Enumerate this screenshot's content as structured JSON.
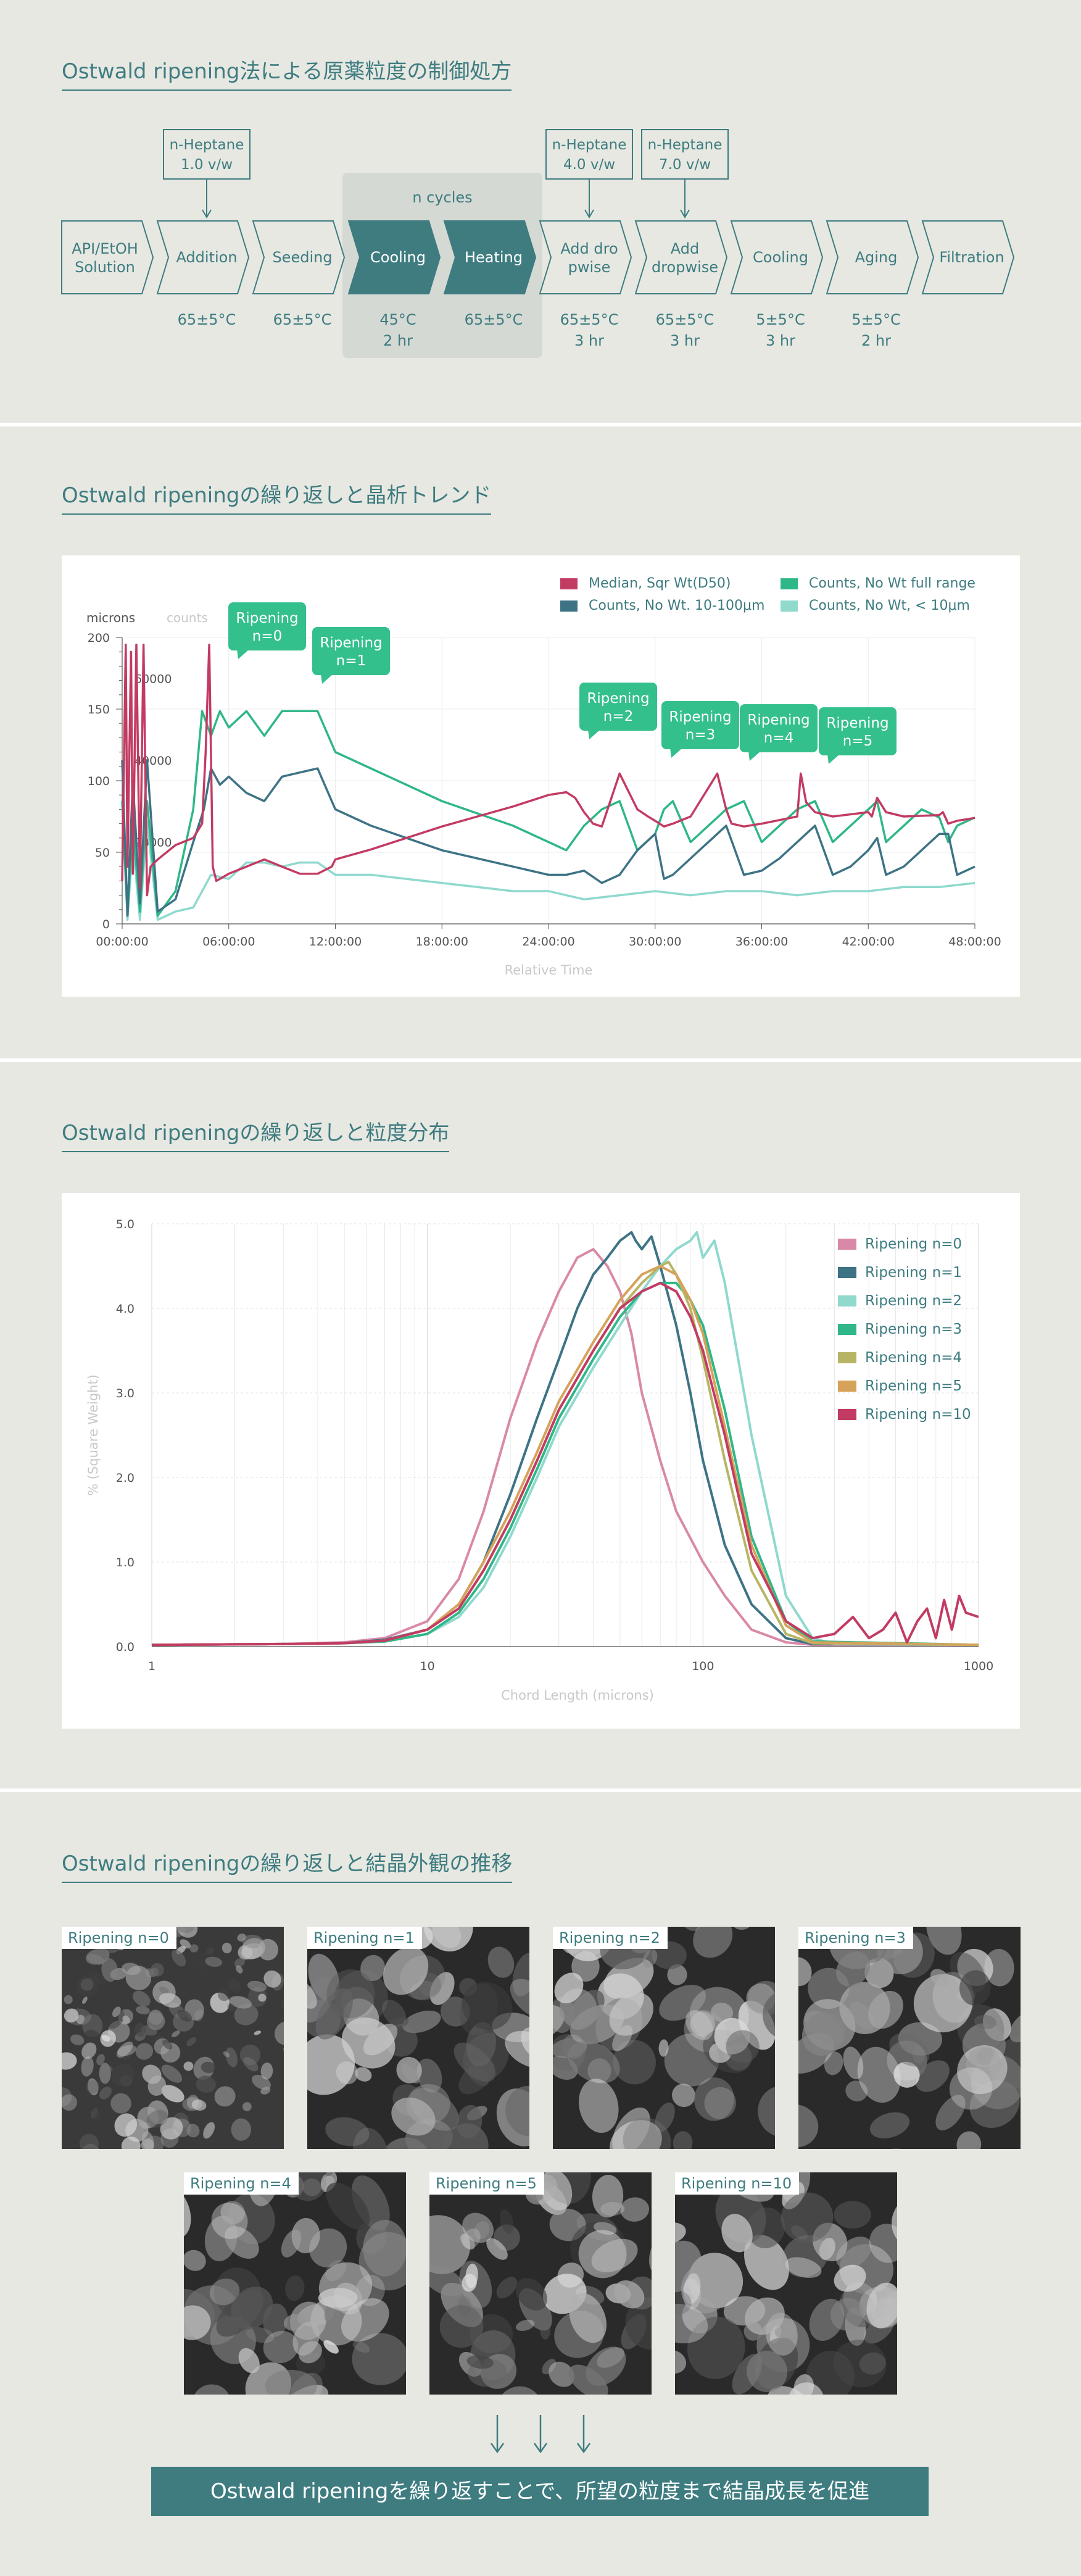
{
  "sections": {
    "process": {
      "title": "Ostwald ripening法による原薬粒度の制御処方"
    },
    "trend": {
      "title": "Ostwald ripeningの繰り返しと晶析トレンド"
    },
    "psd": {
      "title": "Ostwald ripeningの繰り返しと粒度分布"
    },
    "photos": {
      "title": "Ostwald ripeningの繰り返しと結晶外観の推移"
    }
  },
  "process": {
    "cycle_label": "n cycles",
    "steps": [
      {
        "label": "API/EtOH\nSolution",
        "cond": "",
        "style": "outline"
      },
      {
        "label": "Addition",
        "cond": "65±5°C",
        "style": "outline"
      },
      {
        "label": "Seeding",
        "cond": "65±5°C",
        "style": "outline"
      },
      {
        "label": "Cooling",
        "cond": "45°C\n2 hr",
        "style": "filled"
      },
      {
        "label": "Heating",
        "cond": "65±5°C",
        "style": "filled"
      },
      {
        "label": "Add dro\npwise",
        "cond": "65±5°C\n3 hr",
        "style": "outline"
      },
      {
        "label": "Add\ndropwise",
        "cond": "65±5°C\n3 hr",
        "style": "outline"
      },
      {
        "label": "Cooling",
        "cond": "5±5°C\n3 hr",
        "style": "outline"
      },
      {
        "label": "Aging",
        "cond": "5±5°C\n2 hr",
        "style": "outline"
      },
      {
        "label": "Filtration",
        "cond": "",
        "style": "outline"
      }
    ],
    "additions": [
      {
        "step": 1,
        "label": "n-Heptane\n1.0 v/w"
      },
      {
        "step": 5,
        "label": "n-Heptane\n4.0 v/w"
      },
      {
        "step": 6,
        "label": "n-Heptane\n7.0 v/w"
      }
    ],
    "colors": {
      "accent": "#3e7c80",
      "cycle_bg": "#d5d9d4"
    }
  },
  "chart_data": [
    {
      "type": "line",
      "title": "",
      "xlabel": "Relative Time",
      "ylabel_left": "microns",
      "ylabel_right": "counts",
      "x_ticks": [
        "00:00:00",
        "06:00:00",
        "12:00:00",
        "18:00:00",
        "24:00:00",
        "30:00:00",
        "36:00:00",
        "42:00:00",
        "48:00:00"
      ],
      "xlim": [
        0,
        48
      ],
      "ylim_left": [
        0,
        200
      ],
      "y_ticks_left": [
        "0",
        "50",
        "100",
        "150",
        "200"
      ],
      "ylim_right": [
        0,
        70000
      ],
      "y_ticks_right": [
        "20000",
        "40000",
        "60000"
      ],
      "legend_position": "top-right",
      "series": [
        {
          "name": "Median, Sqr Wt(D50)",
          "color": "#c23b63",
          "axis": "left",
          "x": [
            0.0,
            0.2,
            0.3,
            0.5,
            0.6,
            0.8,
            1.0,
            1.2,
            1.4,
            1.6,
            2.0,
            3.0,
            4.0,
            4.5,
            4.7,
            4.9,
            5.1,
            5.3,
            6.0,
            7.0,
            8.0,
            9.0,
            10.0,
            11.0,
            11.8,
            12.0,
            14,
            16,
            18,
            20,
            22,
            24,
            25,
            25.5,
            26.0,
            26.2,
            26.5,
            27.0,
            28,
            29,
            29.6,
            30.0,
            30.5,
            31,
            32,
            33.5,
            34,
            34.3,
            35,
            36,
            38,
            38.2,
            38.5,
            39,
            40,
            42,
            42.2,
            42.5,
            43,
            44,
            46,
            46.2,
            46.5,
            47,
            48
          ],
          "y": [
            30,
            195,
            40,
            190,
            35,
            195,
            25,
            195,
            20,
            40,
            45,
            55,
            60,
            70,
            120,
            195,
            40,
            30,
            35,
            40,
            45,
            40,
            35,
            35,
            40,
            45,
            52,
            60,
            68,
            75,
            82,
            90,
            92,
            88,
            78,
            75,
            70,
            68,
            105,
            80,
            75,
            72,
            68,
            70,
            75,
            105,
            80,
            70,
            68,
            70,
            75,
            105,
            85,
            78,
            75,
            78,
            75,
            88,
            78,
            75,
            76,
            78,
            70,
            72,
            74
          ]
        },
        {
          "name": "Counts, No Wt. 10-100μm",
          "color": "#3d7385",
          "axis": "right",
          "x": [
            0.0,
            0.3,
            0.6,
            1.0,
            1.4,
            2.0,
            3.0,
            4.0,
            4.6,
            5.0,
            5.5,
            6.0,
            7.0,
            8.0,
            9.0,
            10.0,
            11.0,
            12.0,
            14,
            16,
            18,
            20,
            22,
            24,
            25,
            26,
            27,
            28,
            29,
            30,
            30.5,
            31,
            32,
            33,
            34,
            35,
            36,
            37,
            38,
            39,
            40,
            41,
            42,
            42.5,
            43,
            44,
            45,
            46,
            46.5,
            47,
            48
          ],
          "y": [
            40000,
            2000,
            35000,
            5000,
            40000,
            3000,
            6000,
            20000,
            28000,
            38000,
            34000,
            36000,
            32000,
            30000,
            36000,
            37000,
            38000,
            28000,
            24000,
            21000,
            18000,
            16000,
            14000,
            12000,
            12000,
            13000,
            10000,
            12000,
            18000,
            22000,
            11000,
            12000,
            16000,
            20000,
            24000,
            12000,
            13000,
            16000,
            20000,
            24000,
            12000,
            14000,
            18000,
            21000,
            12000,
            14000,
            18000,
            22000,
            22000,
            12000,
            14000
          ]
        },
        {
          "name": "Counts, No Wt full range",
          "color": "#2fb787",
          "axis": "right",
          "x": [
            0.0,
            0.3,
            0.6,
            1.0,
            1.4,
            2.0,
            3.0,
            4.0,
            4.5,
            5.0,
            5.5,
            6.0,
            7.0,
            8.0,
            9.0,
            10.0,
            11.0,
            12.0,
            14,
            16,
            18,
            20,
            22,
            24,
            25,
            26,
            27,
            28,
            29,
            30,
            30.5,
            31,
            32,
            33,
            34,
            35,
            36,
            37,
            38,
            39,
            40,
            41,
            42,
            42.5,
            43,
            44,
            45,
            46,
            46.5,
            47,
            48
          ],
          "y": [
            30000,
            2000,
            25000,
            3000,
            30000,
            2000,
            8000,
            28000,
            52000,
            46000,
            52000,
            48000,
            52000,
            46000,
            52000,
            52000,
            52000,
            42000,
            38000,
            34000,
            30000,
            27000,
            24000,
            20000,
            18000,
            24000,
            28000,
            30000,
            18000,
            22000,
            28000,
            30000,
            20000,
            24000,
            28000,
            30000,
            20000,
            24000,
            28000,
            30000,
            20000,
            24000,
            28000,
            30000,
            20000,
            24000,
            28000,
            26000,
            20000,
            24000,
            26000
          ]
        },
        {
          "name": "Counts, No Wt, < 10μm",
          "color": "#8fd9cd",
          "axis": "right",
          "x": [
            0.0,
            0.3,
            0.6,
            1.0,
            1.4,
            2.0,
            3.0,
            4.0,
            5.0,
            6.0,
            7.0,
            8.0,
            9.0,
            10.0,
            11.0,
            12.0,
            14,
            16,
            18,
            20,
            22,
            24,
            26,
            28,
            30,
            32,
            34,
            36,
            38,
            40,
            42,
            44,
            46,
            48
          ],
          "y": [
            30000,
            1000,
            20000,
            1000,
            25000,
            1000,
            3000,
            4000,
            12000,
            11000,
            15000,
            15000,
            14000,
            15000,
            15000,
            12000,
            12000,
            11000,
            10000,
            9000,
            8000,
            8000,
            6000,
            7000,
            8000,
            7000,
            8000,
            8000,
            7000,
            8000,
            8000,
            9000,
            9000,
            10000
          ]
        }
      ],
      "annotations": [
        {
          "label": "Ripening\nn=0",
          "x": 5.0,
          "y": 195
        },
        {
          "label": "Ripening\nn=1",
          "x": 9.5,
          "y": 175
        },
        {
          "label": "Ripening\nn=2",
          "x": 26.0,
          "y": 135
        },
        {
          "label": "Ripening\nn=3",
          "x": 30.0,
          "y": 120
        },
        {
          "label": "Ripening\nn=4",
          "x": 34.0,
          "y": 115
        },
        {
          "label": "Ripening\nn=5",
          "x": 38.5,
          "y": 112
        }
      ]
    },
    {
      "type": "line",
      "title": "",
      "xlabel": "Chord Length (microns)",
      "ylabel": "% (Square Weight)",
      "x_scale": "log",
      "xlim": [
        1,
        1000
      ],
      "x_ticks": [
        "1",
        "10",
        "100",
        "1000"
      ],
      "ylim": [
        0,
        5
      ],
      "y_ticks": [
        "0.0",
        "1.0",
        "2.0",
        "3.0",
        "4.0",
        "5.0"
      ],
      "legend_position": "top-right",
      "series": [
        {
          "name": "Ripening n=0",
          "color": "#d989a8",
          "x": [
            1,
            3,
            5,
            7,
            10,
            13,
            16,
            20,
            25,
            30,
            35,
            40,
            45,
            50,
            55,
            60,
            70,
            80,
            100,
            120,
            150,
            200,
            250,
            1000
          ],
          "y": [
            0.02,
            0.03,
            0.05,
            0.1,
            0.3,
            0.8,
            1.6,
            2.7,
            3.6,
            4.2,
            4.6,
            4.7,
            4.5,
            4.2,
            3.7,
            3.0,
            2.2,
            1.6,
            1.0,
            0.6,
            0.2,
            0.05,
            0.02,
            0.02
          ]
        },
        {
          "name": "Ripening n=1",
          "color": "#3d7385",
          "x": [
            1,
            3,
            5,
            7,
            10,
            13,
            16,
            20,
            25,
            30,
            35,
            40,
            45,
            50,
            55,
            57,
            60,
            65,
            70,
            80,
            90,
            100,
            120,
            150,
            200,
            250,
            1000
          ],
          "y": [
            0.02,
            0.03,
            0.04,
            0.08,
            0.2,
            0.5,
            1.0,
            1.8,
            2.7,
            3.4,
            4.0,
            4.4,
            4.6,
            4.8,
            4.9,
            4.8,
            4.7,
            4.85,
            4.5,
            3.8,
            3.0,
            2.2,
            1.2,
            0.5,
            0.1,
            0.03,
            0.02
          ]
        },
        {
          "name": "Ripening n=2",
          "color": "#8fd9cd",
          "x": [
            1,
            3,
            5,
            7,
            10,
            13,
            16,
            20,
            25,
            30,
            40,
            50,
            60,
            70,
            80,
            90,
            95,
            100,
            110,
            120,
            150,
            200,
            250,
            300,
            1000
          ],
          "y": [
            0.02,
            0.03,
            0.04,
            0.06,
            0.15,
            0.35,
            0.7,
            1.3,
            2.0,
            2.6,
            3.3,
            3.8,
            4.2,
            4.5,
            4.7,
            4.8,
            4.9,
            4.6,
            4.8,
            4.3,
            2.5,
            0.6,
            0.1,
            0.03,
            0.02
          ]
        },
        {
          "name": "Ripening n=3",
          "color": "#2fb787",
          "x": [
            1,
            3,
            5,
            7,
            10,
            13,
            16,
            20,
            25,
            30,
            40,
            50,
            60,
            70,
            80,
            90,
            100,
            120,
            150,
            200,
            250,
            1000
          ],
          "y": [
            0.02,
            0.03,
            0.04,
            0.06,
            0.15,
            0.4,
            0.8,
            1.4,
            2.1,
            2.7,
            3.4,
            3.9,
            4.2,
            4.3,
            4.3,
            4.1,
            3.8,
            2.8,
            1.3,
            0.3,
            0.06,
            0.02
          ]
        },
        {
          "name": "Ripening n=4",
          "color": "#b7b565",
          "x": [
            1,
            3,
            5,
            7,
            10,
            13,
            16,
            20,
            25,
            30,
            40,
            50,
            60,
            70,
            75,
            80,
            90,
            100,
            120,
            150,
            200,
            250,
            1000
          ],
          "y": [
            0.02,
            0.03,
            0.04,
            0.07,
            0.2,
            0.45,
            0.9,
            1.5,
            2.2,
            2.8,
            3.5,
            4.0,
            4.3,
            4.5,
            4.55,
            4.4,
            4.0,
            3.4,
            2.2,
            0.9,
            0.15,
            0.04,
            0.02
          ]
        },
        {
          "name": "Ripening n=5",
          "color": "#d6a25a",
          "x": [
            1,
            3,
            5,
            7,
            10,
            13,
            16,
            20,
            25,
            30,
            40,
            50,
            60,
            70,
            80,
            90,
            100,
            120,
            150,
            200,
            250,
            1000
          ],
          "y": [
            0.02,
            0.03,
            0.04,
            0.07,
            0.2,
            0.5,
            1.0,
            1.6,
            2.3,
            2.9,
            3.6,
            4.1,
            4.4,
            4.5,
            4.4,
            4.1,
            3.7,
            2.6,
            1.2,
            0.25,
            0.05,
            0.02
          ]
        },
        {
          "name": "Ripening n=10",
          "color": "#c23b63",
          "x": [
            1,
            3,
            5,
            7,
            10,
            13,
            16,
            20,
            25,
            30,
            40,
            50,
            60,
            70,
            80,
            90,
            100,
            120,
            150,
            200,
            250,
            300,
            350,
            400,
            450,
            500,
            550,
            600,
            650,
            700,
            750,
            800,
            850,
            900,
            1000
          ],
          "y": [
            0.02,
            0.03,
            0.04,
            0.07,
            0.2,
            0.45,
            0.9,
            1.5,
            2.2,
            2.8,
            3.5,
            4.0,
            4.2,
            4.3,
            4.2,
            3.9,
            3.5,
            2.5,
            1.1,
            0.3,
            0.1,
            0.15,
            0.35,
            0.1,
            0.2,
            0.4,
            0.05,
            0.3,
            0.45,
            0.1,
            0.55,
            0.2,
            0.6,
            0.4,
            0.35
          ]
        }
      ]
    }
  ],
  "photos": [
    {
      "label": "Ripening n=0"
    },
    {
      "label": "Ripening n=1"
    },
    {
      "label": "Ripening n=2"
    },
    {
      "label": "Ripening n=3"
    },
    {
      "label": "Ripening n=4"
    },
    {
      "label": "Ripening n=5"
    },
    {
      "label": "Ripening n=10"
    }
  ],
  "arrows": [
    "↓",
    "↓",
    "↓"
  ],
  "conclusion": "Ostwald ripeningを繰り返すことで、所望の粒度まで結晶成長を促進"
}
